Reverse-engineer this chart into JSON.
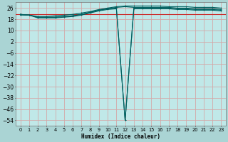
{
  "xlabel": "Humidex (Indice chaleur)",
  "bg_color": "#aad4d4",
  "plot_bg_color": "#c0e8e8",
  "grid_color": "#d4a8a8",
  "line_color": "#006060",
  "red_line_color": "#cc2222",
  "xlim": [
    -0.5,
    23.5
  ],
  "ylim": [
    -58,
    30
  ],
  "yticks": [
    26,
    18,
    10,
    2,
    -6,
    -14,
    -22,
    -30,
    -38,
    -46,
    -54
  ],
  "xticks": [
    0,
    1,
    2,
    3,
    4,
    5,
    6,
    7,
    8,
    9,
    10,
    11,
    12,
    13,
    14,
    15,
    16,
    17,
    18,
    19,
    20,
    21,
    22,
    23
  ],
  "lines": [
    [
      21.5,
      21.0,
      19.5,
      19.5,
      19.5,
      20.0,
      20.5,
      21.5,
      23.0,
      24.5,
      25.5,
      26.5,
      27.0,
      26.5,
      26.5,
      26.5,
      26.5,
      26.5,
      26.0,
      26.0,
      25.5,
      25.5,
      25.5,
      25.0
    ],
    [
      21.5,
      21.0,
      19.5,
      19.5,
      19.5,
      20.0,
      20.5,
      21.5,
      23.0,
      24.5,
      25.5,
      26.0,
      -54,
      26.0,
      26.0,
      26.0,
      26.0,
      26.0,
      25.5,
      25.5,
      25.0,
      25.0,
      25.0,
      24.5
    ],
    [
      21.0,
      21.0,
      19.0,
      19.0,
      19.0,
      19.5,
      20.0,
      21.0,
      22.5,
      24.0,
      25.0,
      25.5,
      -54,
      25.5,
      25.5,
      25.5,
      25.5,
      25.5,
      25.0,
      25.0,
      24.5,
      24.5,
      24.5,
      24.0
    ],
    [
      21.5,
      21.0,
      20.0,
      20.0,
      20.5,
      21.0,
      21.5,
      22.5,
      23.5,
      25.0,
      26.0,
      27.0,
      27.5,
      27.5,
      27.5,
      27.5,
      27.5,
      27.0,
      27.0,
      27.0,
      26.5,
      26.5,
      26.5,
      26.0
    ]
  ],
  "red_line_y": 21.5
}
